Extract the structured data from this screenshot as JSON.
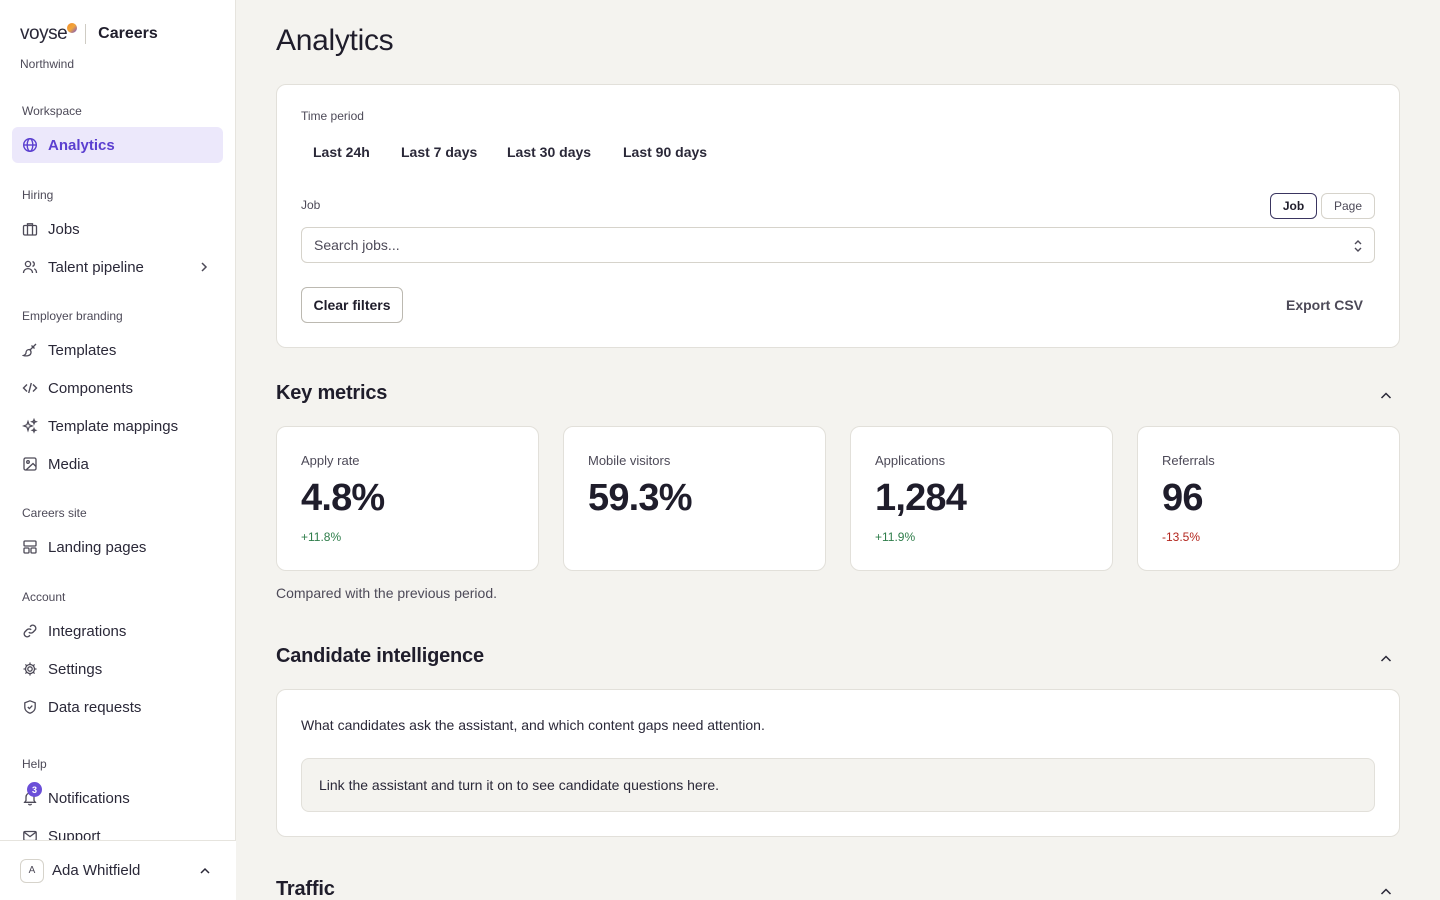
{
  "brand": {
    "logo_text": "voyse",
    "product": "Careers",
    "org": "Northwind"
  },
  "nav": {
    "sections": [
      {
        "title": "Workspace",
        "items": [
          {
            "label": "Analytics",
            "icon": "globe-icon",
            "active": true
          }
        ]
      },
      {
        "title": "Hiring",
        "items": [
          {
            "label": "Jobs",
            "icon": "briefcase-icon"
          },
          {
            "label": "Talent pipeline",
            "icon": "users-icon",
            "has_children": true
          }
        ]
      },
      {
        "title": "Employer branding",
        "items": [
          {
            "label": "Templates",
            "icon": "brush-icon"
          },
          {
            "label": "Components",
            "icon": "code-icon"
          },
          {
            "label": "Template mappings",
            "icon": "sparkles-icon"
          },
          {
            "label": "Media",
            "icon": "image-icon"
          }
        ]
      },
      {
        "title": "Careers site",
        "items": [
          {
            "label": "Landing pages",
            "icon": "layout-icon"
          }
        ]
      },
      {
        "title": "Account",
        "items": [
          {
            "label": "Integrations",
            "icon": "link-icon"
          },
          {
            "label": "Settings",
            "icon": "gear-icon"
          },
          {
            "label": "Data requests",
            "icon": "shield-icon"
          }
        ]
      },
      {
        "title": "Help",
        "items": [
          {
            "label": "Notifications",
            "icon": "bell-icon",
            "badge": "3"
          },
          {
            "label": "Support",
            "icon": "mail-icon"
          }
        ]
      }
    ]
  },
  "user": {
    "initial": "A",
    "name": "Ada Whitfield"
  },
  "page": {
    "title": "Analytics"
  },
  "filters": {
    "time_period_label": "Time period",
    "periods": [
      "Last 24h",
      "Last 7 days",
      "Last 30 days",
      "Last 90 days"
    ],
    "job_label": "Job",
    "scope_options": [
      "Job",
      "Page"
    ],
    "scope_selected": "Job",
    "search_placeholder": "Search jobs...",
    "clear_label": "Clear filters",
    "export_label": "Export CSV"
  },
  "key_metrics": {
    "title": "Key metrics",
    "items": [
      {
        "label": "Apply rate",
        "value": "4.8%",
        "delta": "+11.8%",
        "trend": "up"
      },
      {
        "label": "Mobile visitors",
        "value": "59.3%",
        "delta": "",
        "trend": "none"
      },
      {
        "label": "Applications",
        "value": "1,284",
        "delta": "+11.9%",
        "trend": "up"
      },
      {
        "label": "Referrals",
        "value": "96",
        "delta": "-13.5%",
        "trend": "down"
      }
    ],
    "note": "Compared with the previous period."
  },
  "candidate_intelligence": {
    "title": "Candidate intelligence",
    "description": "What candidates ask the assistant, and which content gaps need attention.",
    "empty_message": "Link the assistant and turn it on to see candidate questions here."
  },
  "traffic": {
    "title": "Traffic"
  },
  "colors": {
    "accent": "#5b3fd0",
    "active_bg": "#ece8fb",
    "positive": "#2e7d4a",
    "negative": "#b3261e",
    "page_bg": "#f4f3ef"
  }
}
